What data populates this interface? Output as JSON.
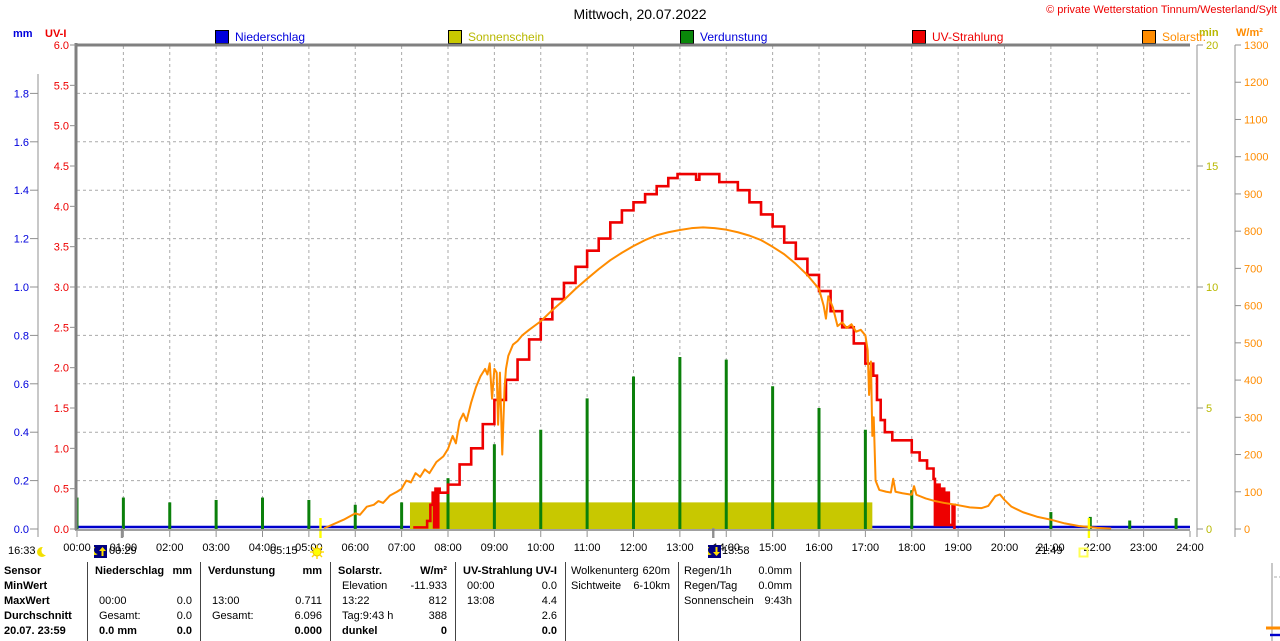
{
  "header": {
    "title": "Mittwoch, 20.07.2022",
    "copyright": "© private Wetterstation Tinnum/Westerland/Sylt"
  },
  "legend": [
    {
      "label": "Niederschlag",
      "color": "#0000dd",
      "box": "#0000dd"
    },
    {
      "label": "Sonnenschein",
      "color": "#b8b800",
      "box": "#c8c800"
    },
    {
      "label": "Verdunstung",
      "color": "#0000dd",
      "box": "#0a870a"
    },
    {
      "label": "UV-Strahlung",
      "color": "#ee0000",
      "box": "#ee0000"
    },
    {
      "label": "Solarstr.",
      "color": "#ff8c00",
      "box": "#ff8c00"
    }
  ],
  "axes": {
    "left_mm": {
      "label": "mm",
      "color": "#0000dd",
      "ticks": [
        "0.0",
        "0.2",
        "0.4",
        "0.6",
        "0.8",
        "1.0",
        "1.2",
        "1.4",
        "1.6",
        "1.8"
      ]
    },
    "left_uv": {
      "label": "UV-I",
      "color": "#ee0000",
      "ticks": [
        "0.0",
        "0.5",
        "1.0",
        "1.5",
        "2.0",
        "2.5",
        "3.0",
        "3.5",
        "4.0",
        "4.5",
        "5.0",
        "5.5",
        "6.0"
      ]
    },
    "right_min": {
      "label": "min",
      "color": "#b8b800",
      "ticks": [
        "0",
        "5",
        "10",
        "15",
        "20"
      ]
    },
    "right_w": {
      "label": "W/m²",
      "color": "#ff8c00",
      "ticks": [
        "0",
        "100",
        "200",
        "300",
        "400",
        "500",
        "600",
        "700",
        "800",
        "900",
        "1000",
        "1100",
        "1200",
        "1300"
      ]
    },
    "x": {
      "ticks": [
        "00:00",
        "01:00",
        "02:00",
        "03:00",
        "04:00",
        "05:00",
        "06:00",
        "07:00",
        "08:00",
        "09:00",
        "10:00",
        "11:00",
        "12:00",
        "13:00",
        "14:00",
        "15:00",
        "16:00",
        "17:00",
        "18:00",
        "19:00",
        "20:00",
        "21:00",
        "22:00",
        "23:00",
        "24:00"
      ]
    }
  },
  "markers": [
    {
      "time": "16:33",
      "icon": "moon-icon"
    },
    {
      "time": "00:29",
      "icon": "moonrise-icon"
    },
    {
      "time": "05:15",
      "icon": "sunrise-icon"
    },
    {
      "time": "13:58",
      "icon": "moonset-icon"
    },
    {
      "time": "21:49",
      "icon": "sunset-icon"
    }
  ],
  "chart_data": {
    "type": "line",
    "title": "Mittwoch, 20.07.2022",
    "x_axis": {
      "unit": "hours",
      "range": [
        0,
        24
      ],
      "grid": "hourly dashed"
    },
    "y_axes": [
      {
        "id": "mm",
        "label": "mm",
        "range": [
          0,
          2.0
        ]
      },
      {
        "id": "uv",
        "label": "UV-I",
        "range": [
          0,
          6.0
        ]
      },
      {
        "id": "min",
        "label": "min",
        "range": [
          0,
          20
        ]
      },
      {
        "id": "wm2",
        "label": "W/m²",
        "range": [
          0,
          1300
        ]
      }
    ],
    "event_lines": [
      {
        "t": 5.25,
        "color": "#ffff00",
        "name": "sunrise 05:15"
      },
      {
        "t": 21.82,
        "color": "#ffff00",
        "name": "sunset 21:49"
      },
      {
        "t": 0.97,
        "color": "#909090",
        "name": "moon event 00:29"
      },
      {
        "t": 13.72,
        "color": "#909090",
        "name": "moon event 13:58"
      }
    ],
    "series": [
      {
        "name": "Niederschlag",
        "axis": "mm",
        "color": "#0000cc",
        "type": "line",
        "points": [
          [
            0,
            0
          ],
          [
            24,
            0
          ]
        ]
      },
      {
        "name": "Sonnenschein",
        "axis": "min",
        "color": "#c8c800",
        "type": "band",
        "start": 7.18,
        "end": 17.15,
        "value": 1.1
      },
      {
        "name": "Verdunstung",
        "axis": "mm",
        "color": "#0b800b",
        "type": "spikes",
        "points": [
          [
            0,
            0.13
          ],
          [
            1,
            0.13
          ],
          [
            2,
            0.11
          ],
          [
            3,
            0.12
          ],
          [
            4,
            0.13
          ],
          [
            5,
            0.12
          ],
          [
            6,
            0.1
          ],
          [
            7,
            0.11
          ],
          [
            8,
            0.21
          ],
          [
            9,
            0.35
          ],
          [
            10,
            0.41
          ],
          [
            11,
            0.54
          ],
          [
            12,
            0.63
          ],
          [
            13,
            0.711
          ],
          [
            14,
            0.7
          ],
          [
            15,
            0.59
          ],
          [
            16,
            0.5
          ],
          [
            17,
            0.41
          ],
          [
            18,
            0.16
          ],
          [
            21,
            0.07
          ],
          [
            21.85,
            0.05
          ],
          [
            22.7,
            0.035
          ],
          [
            23.7,
            0.045
          ]
        ]
      },
      {
        "name": "UV-Strahlung",
        "axis": "uv",
        "color": "#ee0000",
        "type": "step",
        "points": [
          [
            7.25,
            0.02
          ],
          [
            7.55,
            0.1
          ],
          [
            7.62,
            0.3
          ],
          [
            7.67,
            0.45
          ],
          [
            7.7,
            0.02
          ],
          [
            7.73,
            0.5
          ],
          [
            7.76,
            0.02
          ],
          [
            7.79,
            0.5
          ],
          [
            7.82,
            0.45
          ],
          [
            8.0,
            0.55
          ],
          [
            8.25,
            0.8
          ],
          [
            8.5,
            1.0
          ],
          [
            8.75,
            1.3
          ],
          [
            9.0,
            1.6
          ],
          [
            9.25,
            1.85
          ],
          [
            9.5,
            2.1
          ],
          [
            9.75,
            2.35
          ],
          [
            10.0,
            2.6
          ],
          [
            10.25,
            2.85
          ],
          [
            10.5,
            3.05
          ],
          [
            10.75,
            3.25
          ],
          [
            11.0,
            3.45
          ],
          [
            11.25,
            3.6
          ],
          [
            11.5,
            3.8
          ],
          [
            11.75,
            3.95
          ],
          [
            12.0,
            4.05
          ],
          [
            12.25,
            4.15
          ],
          [
            12.5,
            4.25
          ],
          [
            12.75,
            4.35
          ],
          [
            12.95,
            4.4
          ],
          [
            13.3,
            4.4
          ],
          [
            13.35,
            4.33
          ],
          [
            13.42,
            4.4
          ],
          [
            13.75,
            4.4
          ],
          [
            13.85,
            4.3
          ],
          [
            14.1,
            4.3
          ],
          [
            14.25,
            4.2
          ],
          [
            14.5,
            4.05
          ],
          [
            14.75,
            3.9
          ],
          [
            15.0,
            3.75
          ],
          [
            15.25,
            3.55
          ],
          [
            15.5,
            3.35
          ],
          [
            15.75,
            3.15
          ],
          [
            16.0,
            2.95
          ],
          [
            16.25,
            2.7
          ],
          [
            16.5,
            2.5
          ],
          [
            16.75,
            2.3
          ],
          [
            17.0,
            2.05
          ],
          [
            17.17,
            1.9
          ],
          [
            17.25,
            1.6
          ],
          [
            17.33,
            1.35
          ],
          [
            17.42,
            1.2
          ],
          [
            17.58,
            1.1
          ],
          [
            18.0,
            0.95
          ],
          [
            18.17,
            0.85
          ],
          [
            18.33,
            0.75
          ],
          [
            18.47,
            0.62
          ],
          [
            18.5,
            0.05
          ],
          [
            18.55,
            0.55
          ],
          [
            18.6,
            0.05
          ],
          [
            18.65,
            0.5
          ],
          [
            18.7,
            0.05
          ],
          [
            18.75,
            0.45
          ],
          [
            18.8,
            0.05
          ],
          [
            18.88,
            0.3
          ],
          [
            18.92,
            0.0
          ]
        ]
      },
      {
        "name": "Solarstr.",
        "axis": "wm2",
        "color": "#ff8c00",
        "type": "line",
        "points": [
          [
            5.33,
            2
          ],
          [
            5.75,
            25
          ],
          [
            6.0,
            42
          ],
          [
            6.1,
            38
          ],
          [
            6.25,
            60
          ],
          [
            6.4,
            65
          ],
          [
            6.5,
            75
          ],
          [
            6.6,
            70
          ],
          [
            6.75,
            90
          ],
          [
            6.9,
            100
          ],
          [
            7.0,
            108
          ],
          [
            7.1,
            130
          ],
          [
            7.2,
            125
          ],
          [
            7.3,
            150
          ],
          [
            7.4,
            140
          ],
          [
            7.5,
            160
          ],
          [
            7.6,
            150
          ],
          [
            7.75,
            180
          ],
          [
            7.9,
            195
          ],
          [
            8.0,
            215
          ],
          [
            8.1,
            250
          ],
          [
            8.17,
            230
          ],
          [
            8.25,
            290
          ],
          [
            8.33,
            310
          ],
          [
            8.4,
            290
          ],
          [
            8.5,
            340
          ],
          [
            8.6,
            380
          ],
          [
            8.7,
            410
          ],
          [
            8.8,
            430
          ],
          [
            8.85,
            415
          ],
          [
            8.9,
            445
          ],
          [
            8.95,
            350
          ],
          [
            9.0,
            430
          ],
          [
            9.05,
            420
          ],
          [
            9.08,
            280
          ],
          [
            9.12,
            420
          ],
          [
            9.17,
            200
          ],
          [
            9.22,
            380
          ],
          [
            9.25,
            430
          ],
          [
            9.3,
            465
          ],
          [
            9.4,
            495
          ],
          [
            9.5,
            505
          ],
          [
            9.6,
            520
          ],
          [
            9.75,
            535
          ],
          [
            10.0,
            558
          ],
          [
            10.25,
            588
          ],
          [
            10.5,
            615
          ],
          [
            10.75,
            645
          ],
          [
            11.0,
            672
          ],
          [
            11.25,
            698
          ],
          [
            11.5,
            722
          ],
          [
            11.75,
            742
          ],
          [
            12.0,
            760
          ],
          [
            12.25,
            776
          ],
          [
            12.5,
            789
          ],
          [
            12.75,
            797
          ],
          [
            13.0,
            803
          ],
          [
            13.25,
            808
          ],
          [
            13.5,
            810
          ],
          [
            13.75,
            808
          ],
          [
            14.0,
            804
          ],
          [
            14.25,
            797
          ],
          [
            14.5,
            788
          ],
          [
            14.75,
            776
          ],
          [
            15.0,
            758
          ],
          [
            15.25,
            738
          ],
          [
            15.5,
            712
          ],
          [
            15.75,
            682
          ],
          [
            16.0,
            645
          ],
          [
            16.1,
            600
          ],
          [
            16.15,
            565
          ],
          [
            16.2,
            625
          ],
          [
            16.3,
            595
          ],
          [
            16.4,
            545
          ],
          [
            16.5,
            555
          ],
          [
            16.6,
            540
          ],
          [
            16.7,
            550
          ],
          [
            16.8,
            530
          ],
          [
            16.9,
            535
          ],
          [
            17.0,
            520
          ],
          [
            17.05,
            480
          ],
          [
            17.08,
            360
          ],
          [
            17.12,
            450
          ],
          [
            17.15,
            250
          ],
          [
            17.18,
            300
          ],
          [
            17.22,
            130
          ],
          [
            17.3,
            105
          ],
          [
            17.45,
            100
          ],
          [
            17.55,
            98
          ],
          [
            17.6,
            135
          ],
          [
            17.65,
            100
          ],
          [
            17.8,
            96
          ],
          [
            18.0,
            92
          ],
          [
            18.05,
            115
          ],
          [
            18.1,
            92
          ],
          [
            18.3,
            82
          ],
          [
            18.5,
            75
          ],
          [
            18.7,
            70
          ],
          [
            19.0,
            64
          ],
          [
            19.25,
            58
          ],
          [
            19.5,
            56
          ],
          [
            19.65,
            62
          ],
          [
            19.8,
            88
          ],
          [
            19.9,
            93
          ],
          [
            20.0,
            78
          ],
          [
            20.15,
            60
          ],
          [
            20.4,
            45
          ],
          [
            20.7,
            33
          ],
          [
            21.0,
            25
          ],
          [
            21.3,
            15
          ],
          [
            21.6,
            8
          ],
          [
            22.0,
            3
          ],
          [
            22.3,
            1
          ]
        ]
      }
    ]
  },
  "table": {
    "row_labels": [
      "Sensor",
      "MinWert",
      "MaxWert",
      "Durchschnitt",
      "20.07. 23:59"
    ],
    "columns": [
      {
        "title": "Niederschlag",
        "unit": "mm",
        "rows": [
          [
            "",
            ""
          ],
          [
            "00:00",
            "0.0"
          ],
          [
            "Gesamt:",
            "0.0"
          ],
          [
            "0.0 mm",
            "0.0"
          ]
        ]
      },
      {
        "title": "Verdunstung",
        "unit": "mm",
        "rows": [
          [
            "",
            ""
          ],
          [
            "13:00",
            "0.711"
          ],
          [
            "Gesamt:",
            "6.096"
          ],
          [
            "",
            "0.000"
          ]
        ]
      },
      {
        "title": "Solarstr.",
        "unit": "W/m²",
        "rows": [
          [
            "Elevation",
            "-11.933"
          ],
          [
            "13:22",
            "812"
          ],
          [
            "Tag:9:43 h",
            "388"
          ],
          [
            "dunkel",
            "0"
          ]
        ]
      },
      {
        "title": "UV-Strahlung",
        "unit": "UV-I",
        "rows": [
          [
            "00:00",
            "0.0"
          ],
          [
            "13:08",
            "4.4"
          ],
          [
            "",
            "2.6"
          ],
          [
            "",
            "0.0"
          ]
        ]
      }
    ],
    "info_columns": [
      {
        "rows": [
          [
            "Wolkenunterg",
            "620m"
          ],
          [
            "Sichtweite",
            "6-10km"
          ]
        ]
      },
      {
        "rows": [
          [
            "Regen/1h",
            "0.0mm"
          ],
          [
            "Regen/Tag",
            "0.0mm"
          ],
          [
            "Sonnenschein",
            "9:43h"
          ]
        ]
      }
    ]
  }
}
